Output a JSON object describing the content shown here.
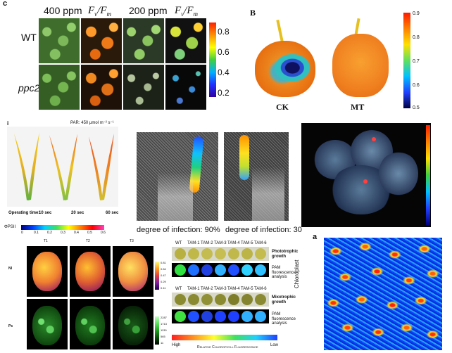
{
  "panel_c": {
    "letter": "c",
    "cols": [
      "400 ppm",
      "Fv/Fm",
      "200 ppm",
      "Fv/Fm"
    ],
    "rows": [
      "WT",
      "ppc2"
    ],
    "scale": [
      "0.8",
      "0.6",
      "0.4",
      "0.2"
    ]
  },
  "panel_b": {
    "letter": "B",
    "labels": [
      "CK",
      "MT"
    ],
    "scale": [
      "0.9",
      "0.8",
      "0.7",
      "0.6",
      "0.5"
    ]
  },
  "panel_i": {
    "letter": "i",
    "par": "PAR: 450 μmol m⁻² s⁻¹",
    "optime": "Operating time:",
    "times": [
      "10 sec",
      "20 sec",
      "60 sec"
    ],
    "phi": "ΦPSII",
    "scale": [
      "0",
      "0.1",
      "0.2",
      "0.3",
      "0.4",
      "0.5",
      "0.6"
    ]
  },
  "panel_inf": {
    "captions": [
      "degree of infection: 90%",
      "degree of infection: 30"
    ]
  },
  "panel_ps": {
    "cols": [
      "T1",
      "T2",
      "T3"
    ],
    "rows": [
      "NI",
      "Ps"
    ],
    "scale_top": [
      "0.81",
      "0.64",
      "0.47",
      "0.29",
      "0.11"
    ],
    "scale_bot": [
      "2287",
      "1713",
      "1139",
      "565",
      "11"
    ]
  },
  "panel_tam": {
    "strains": [
      "WT",
      "TAM-1",
      "TAM-2",
      "TAM-3",
      "TAM-4",
      "TAM-5",
      "TAM-6"
    ],
    "row1": "Phototrophic growth",
    "row2": "PAM fluorescence analysis",
    "row3": "Mixotrophic growth",
    "row4": "PAM fluorescence analysis",
    "legend_high": "High",
    "legend_low": "Low",
    "legend_title": "Relative Chlorophyll Fluorescence"
  },
  "panel_a": {
    "letter": "a",
    "ylabel": "Chloroplast"
  }
}
